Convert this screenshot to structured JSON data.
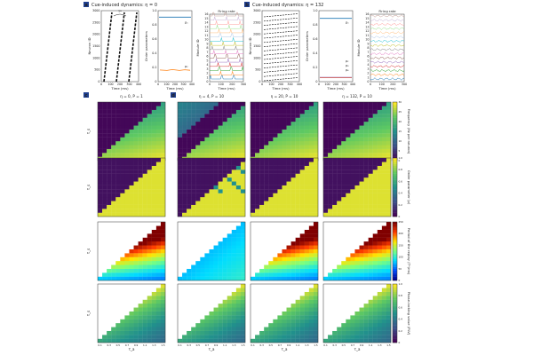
{
  "figure": {
    "panel_a": {
      "letter": "a",
      "title": "Cue-induced dynamics:  η = 0",
      "raster": {
        "ylabel": "Neuron ID",
        "xlabel": "Time (ms)",
        "xticks": [
          "0",
          "100",
          "200",
          "300",
          "400"
        ],
        "yticks": [
          "0",
          "500",
          "1000",
          "1500",
          "2000",
          "2500",
          "3000"
        ],
        "annot": "T*"
      },
      "order": {
        "ylabel": "Order parameters",
        "xlabel": "Time (ms)",
        "xticks": [
          "0",
          "100",
          "200",
          "300",
          "400"
        ],
        "yticks": [
          "0",
          "0.2",
          "0.4",
          "0.6",
          "0.8",
          "1.0"
        ],
        "label_top": "ρ₁",
        "label_bottom": "ρ₂"
      },
      "firing": {
        "title": "Firing rate",
        "ylabel": "Module ID",
        "xlabel": "Time (ms)",
        "xticks": [
          "0",
          "100",
          "200",
          "300"
        ],
        "yticks": [
          "0",
          "1",
          "2",
          "3",
          "4",
          "5",
          "6",
          "7",
          "8",
          "9",
          "10",
          "11",
          "12",
          "13",
          "14",
          "15",
          "16"
        ]
      }
    },
    "panel_b": {
      "letter": "b",
      "title": "Cue-induced dynamics:  η = 132",
      "raster": {
        "ylabel": "Neuron ID",
        "xlabel": "Time (ms)",
        "xticks": [
          "0",
          "100",
          "200",
          "300",
          "400"
        ],
        "yticks": [
          "0",
          "500",
          "1000",
          "1500",
          "2000",
          "2500",
          "3000"
        ]
      },
      "order": {
        "ylabel": "Order parameters",
        "xlabel": "Time (ms)",
        "xticks": [
          "0",
          "100",
          "200",
          "300",
          "400"
        ],
        "yticks": [
          "0",
          "0.2",
          "0.4",
          "0.6",
          "0.8",
          "1.0"
        ],
        "label_top": "ρ₁",
        "labels_bottom": [
          "ρ₂",
          "ρ₃",
          "ρ₄"
        ]
      },
      "firing": {
        "title": "Firing rate",
        "ylabel": "Module ID",
        "xlabel": "Time (ms)",
        "xticks": [
          "0",
          "100",
          "200",
          "300"
        ],
        "yticks": [
          "0",
          "1",
          "2",
          "3",
          "4",
          "5",
          "6",
          "7",
          "8",
          "9",
          "10",
          "11",
          "12",
          "13",
          "14",
          "15",
          "16"
        ]
      }
    },
    "panel_c": {
      "letter": "c"
    },
    "panel_d": {
      "letter": "d"
    },
    "columns": [
      "η = 0, P = 1",
      "η = 4, P = 10",
      "η = 20, P = 10",
      "η = 132, P = 10"
    ],
    "row_labels": [
      "Frequency (Hz per neuron)",
      "Order parameter ⟨ρ⟩",
      "Period of the replay (T*/ms)",
      "Phase-locking value (PLV)"
    ],
    "colorbars": [
      {
        "ticks": [
          "0",
          "5",
          "10",
          "15",
          "20",
          "25",
          "30"
        ],
        "map": "viridis"
      },
      {
        "ticks": [
          "0",
          "0.2",
          "0.4",
          "0.6",
          "0.8",
          "1.0"
        ],
        "map": "viridis"
      },
      {
        "ticks": [
          "0",
          "50",
          "100",
          "150",
          "200",
          "250"
        ],
        "map": "jet"
      },
      {
        "ticks": [
          "0",
          "0.2",
          "0.4",
          "0.6",
          "0.8",
          "1.0"
        ],
        "map": "viridis"
      }
    ],
    "heatmap_axes": {
      "ylabel": "τ_s",
      "xlabel": "τ_a",
      "ticks": [
        "0.1",
        "0.2",
        "0.3",
        "0.4",
        "0.5",
        "0.6",
        "0.7",
        "0.8",
        "0.9",
        "1.0",
        "1.1",
        "1.2",
        "1.3",
        "1.4",
        "1.5"
      ]
    },
    "colors": {
      "raster_line": "#111111",
      "rho1": "#1f77b4",
      "rho2": "#ff7f0e",
      "rho3": "#d62728",
      "rho4": "#9467bd",
      "empty_cell": "#ffffff",
      "frame": "#333333"
    }
  },
  "chart_data": [
    {
      "type": "scatter",
      "title": "Cue-induced dynamics:  η = 0",
      "xlabel": "Time (ms)",
      "ylabel": "Neuron ID",
      "xlim": [
        0,
        400
      ],
      "ylim": [
        0,
        3200
      ],
      "series": [
        {
          "x": [
            0,
            400
          ],
          "y": [
            0,
            3200
          ]
        }
      ]
    },
    {
      "type": "line",
      "xlabel": "Time (ms)",
      "ylabel": "Order parameters",
      "xlim": [
        0,
        400
      ],
      "ylim": [
        0,
        1.1
      ],
      "series": [
        {
          "name": "ρ₁",
          "x": [
            0,
            100,
            200,
            300,
            400
          ],
          "y": [
            1.0,
            1.0,
            1.0,
            1.0,
            1.0
          ]
        },
        {
          "name": "ρ₂",
          "x": [
            0,
            100,
            200,
            300,
            400
          ],
          "y": [
            0.18,
            0.18,
            0.19,
            0.18,
            0.19
          ]
        }
      ]
    },
    {
      "type": "line",
      "title": "Firing rate",
      "xlabel": "Time (ms)",
      "ylabel": "Module ID",
      "xlim": [
        0,
        350
      ],
      "ylim": [
        0,
        16
      ]
    },
    {
      "type": "scatter",
      "title": "Cue-induced dynamics:  η = 132",
      "xlabel": "Time (ms)",
      "ylabel": "Neuron ID",
      "xlim": [
        0,
        400
      ],
      "ylim": [
        0,
        3200
      ]
    },
    {
      "type": "line",
      "xlabel": "Time (ms)",
      "ylabel": "Order parameters",
      "xlim": [
        0,
        400
      ],
      "ylim": [
        0,
        1.1
      ],
      "series": [
        {
          "name": "ρ₁",
          "x": [
            0,
            100,
            200,
            300,
            400
          ],
          "y": [
            0.98,
            0.98,
            0.98,
            0.98,
            0.98
          ]
        },
        {
          "name": "ρ₂",
          "x": [
            0,
            100,
            200,
            300,
            400
          ],
          "y": [
            0.06,
            0.06,
            0.06,
            0.06,
            0.06
          ]
        },
        {
          "name": "ρ₃",
          "x": [
            0,
            100,
            200,
            300,
            400
          ],
          "y": [
            0.05,
            0.05,
            0.05,
            0.05,
            0.05
          ]
        },
        {
          "name": "ρ₄",
          "x": [
            0,
            100,
            200,
            300,
            400
          ],
          "y": [
            0.04,
            0.04,
            0.04,
            0.04,
            0.04
          ]
        }
      ]
    },
    {
      "type": "line",
      "title": "Firing rate",
      "xlabel": "Time (ms)",
      "ylabel": "Module ID",
      "xlim": [
        0,
        350
      ],
      "ylim": [
        0,
        16
      ]
    },
    {
      "type": "heatmap",
      "xlabel": "τ_a",
      "ylabel": "τ_s",
      "rows": [
        "Frequency (Hz per neuron)",
        "Order parameter ⟨ρ⟩",
        "Period of the replay (T*/ms)",
        "Phase-locking value (PLV)"
      ],
      "columns": [
        "η = 0, P = 1",
        "η = 4, P = 10",
        "η = 20, P = 10",
        "η = 132, P = 10"
      ],
      "grid": [
        15,
        15
      ]
    }
  ]
}
